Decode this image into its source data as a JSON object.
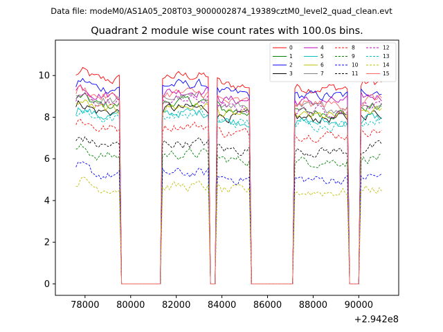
{
  "header": {
    "suptitle": "Data file: modeM0/AS1A05_208T03_9000002874_19389cztM0_level2_quad_clean.evt"
  },
  "chart_data": {
    "type": "line",
    "title": "Quadrant 2 module wise count rates with 100.0s bins.",
    "xlabel": "",
    "ylabel": "",
    "offset_label": "+2.942e8",
    "xlim": [
      76700,
      91750
    ],
    "ylim": [
      -0.55,
      11.7
    ],
    "xticks": [
      78000,
      80000,
      82000,
      84000,
      86000,
      88000,
      90000
    ],
    "xtick_labels": [
      "78000",
      "80000",
      "82000",
      "84000",
      "86000",
      "88000",
      "90000"
    ],
    "yticks": [
      0,
      2,
      4,
      6,
      8,
      10
    ],
    "ytick_labels": [
      "0",
      "2",
      "4",
      "6",
      "8",
      "10"
    ],
    "legend_position": "top-right",
    "bin_size_s": 100,
    "gaps": [
      [
        79550,
        81350
      ],
      [
        83450,
        83750
      ],
      [
        85250,
        87150
      ],
      [
        89550,
        90050
      ]
    ],
    "active_segments": [
      [
        77600,
        79550
      ],
      [
        81350,
        83450
      ],
      [
        83750,
        85250
      ],
      [
        87150,
        89550
      ],
      [
        90050,
        91050
      ]
    ],
    "series": [
      {
        "name": "0",
        "color": "#ff0000",
        "dash": "solid",
        "level": 9.6
      },
      {
        "name": "1",
        "color": "#008000",
        "dash": "solid",
        "level": 8.4
      },
      {
        "name": "2",
        "color": "#0000ff",
        "dash": "solid",
        "level": 9.2
      },
      {
        "name": "3",
        "color": "#000000",
        "dash": "solid",
        "level": 8.1
      },
      {
        "name": "4",
        "color": "#bf00bf",
        "dash": "solid",
        "level": 8.9
      },
      {
        "name": "5",
        "color": "#00bfbf",
        "dash": "solid",
        "level": 7.9
      },
      {
        "name": "6",
        "color": "#bfbf00",
        "dash": "solid",
        "level": 8.2
      },
      {
        "name": "7",
        "color": "#808080",
        "dash": "solid",
        "level": 8.6
      },
      {
        "name": "8",
        "color": "#ff0000",
        "dash": "dashed",
        "level": 7.3
      },
      {
        "name": "9",
        "color": "#008000",
        "dash": "dashed",
        "level": 6.0
      },
      {
        "name": "10",
        "color": "#0000ff",
        "dash": "dashed",
        "level": 5.1
      },
      {
        "name": "11",
        "color": "#000000",
        "dash": "dashed",
        "level": 6.5
      },
      {
        "name": "12",
        "color": "#bf00bf",
        "dash": "dashed",
        "level": 8.5
      },
      {
        "name": "13",
        "color": "#00bfbf",
        "dash": "dashed",
        "level": 7.8
      },
      {
        "name": "14",
        "color": "#bfbf00",
        "dash": "dashed",
        "level": 4.5
      },
      {
        "name": "15",
        "color": "#ff6666",
        "dash": "solid",
        "level": 8.8
      }
    ]
  }
}
